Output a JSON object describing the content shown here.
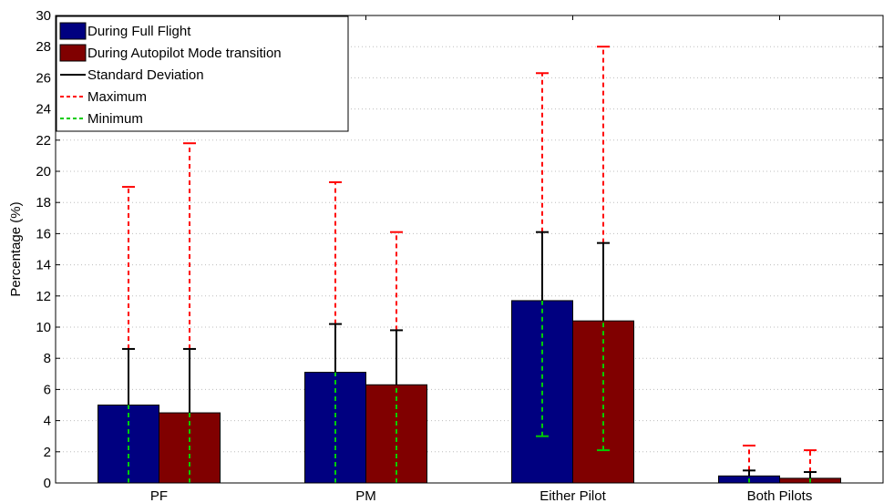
{
  "chart_data": {
    "type": "bar",
    "categories": [
      "PF",
      "PM",
      "Either Pilot",
      "Both Pilots"
    ],
    "ylabel": "Percentage (%)",
    "xlabel": "",
    "title": "",
    "ylim": [
      0,
      30
    ],
    "yticks": [
      0,
      2,
      4,
      6,
      8,
      10,
      12,
      14,
      16,
      18,
      20,
      22,
      24,
      26,
      28,
      30
    ],
    "grid": true,
    "legend_position": "top-left",
    "series": [
      {
        "name": "During Full Flight",
        "color": "#000080",
        "values": [
          5.0,
          7.1,
          11.7,
          0.45
        ],
        "std_upper": [
          8.6,
          10.2,
          16.1,
          0.8
        ],
        "maximum": [
          19.0,
          19.3,
          26.3,
          2.4
        ],
        "minimum": [
          0.0,
          0.0,
          3.0,
          0.0
        ]
      },
      {
        "name": "During Autopilot Mode transition",
        "color": "#800000",
        "values": [
          4.5,
          6.3,
          10.4,
          0.3
        ],
        "std_upper": [
          8.6,
          9.8,
          15.4,
          0.7
        ],
        "maximum": [
          21.8,
          16.1,
          28.0,
          2.1
        ],
        "minimum": [
          0.0,
          0.0,
          2.1,
          0.0
        ]
      }
    ],
    "legend": {
      "entries": [
        {
          "label": "During Full Flight",
          "kind": "patch",
          "color": "#000080"
        },
        {
          "label": "During Autopilot Mode transition",
          "kind": "patch",
          "color": "#800000"
        },
        {
          "label": "Standard Deviation",
          "kind": "line",
          "color": "#000000",
          "dash": "solid"
        },
        {
          "label": "Maximum",
          "kind": "line",
          "color": "#ff0000",
          "dash": "dashed"
        },
        {
          "label": "Minimum",
          "kind": "line",
          "color": "#00cc00",
          "dash": "dashed"
        }
      ]
    }
  }
}
